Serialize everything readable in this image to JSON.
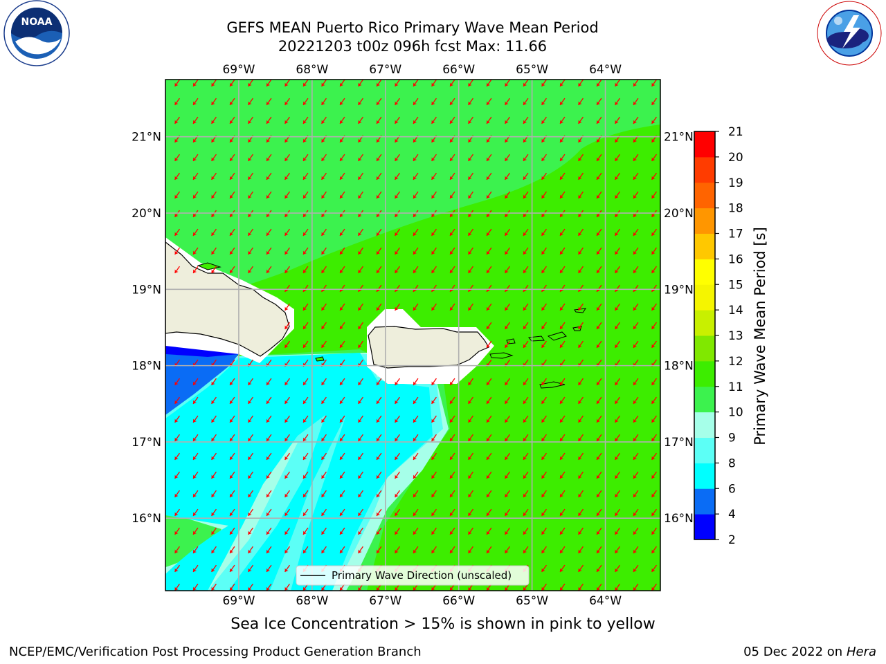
{
  "header": {
    "title_line1": "GEFS MEAN Puerto Rico Primary Wave Mean Period",
    "title_line2": "20221203 t00z 096h fcst   Max: 11.66"
  },
  "logos": {
    "noaa": {
      "text": "NOAA",
      "ring_text": "NATIONAL OCEANIC AND ATMOSPHERIC ADMINISTRATION · U.S. DEPARTMENT OF COMMERCE",
      "icon": "noaa-logo-icon"
    },
    "nws": {
      "ring_text": "NATIONAL WEATHER SERVICE",
      "icon": "nws-logo-icon"
    }
  },
  "map": {
    "lon_ticks": [
      "69°W",
      "68°W",
      "67°W",
      "66°W",
      "65°W",
      "64°W"
    ],
    "lat_ticks": [
      "21°N",
      "20°N",
      "19°N",
      "18°N",
      "17°N",
      "16°N"
    ],
    "lon_range": [
      -70.0,
      -63.25
    ],
    "lat_range": [
      15.05,
      21.75
    ],
    "land_color": "#eeeedc",
    "arrow_color": "#ff0000",
    "legend_label": "Primary Wave Direction (unscaled)",
    "regions": [
      {
        "name": "Hispaniola (east)"
      },
      {
        "name": "Puerto Rico"
      },
      {
        "name": "Virgin Islands"
      }
    ]
  },
  "colorbar": {
    "label": "Primary Wave Mean Period [s]",
    "ticks": [
      "2",
      "4",
      "6",
      "8",
      "9",
      "10",
      "11",
      "12",
      "13",
      "14",
      "15",
      "16",
      "17",
      "18",
      "19",
      "20",
      "21"
    ],
    "colors": [
      "#0000ff",
      "#0a6cf5",
      "#00ffff",
      "#5cfff6",
      "#a6ffe9",
      "#3cf24e",
      "#3ded00",
      "#80e800",
      "#c8f000",
      "#f5f500",
      "#ffff00",
      "#ffc800",
      "#ff9600",
      "#ff6400",
      "#ff3c00",
      "#ff0000"
    ]
  },
  "field_colors": {
    "period_11_12": "#3ded00",
    "period_10_11": "#3cf24e",
    "period_9_10": "#a6ffe9",
    "period_8_9": "#5cfff6",
    "period_6_8": "#00ffff",
    "period_4_6": "#0a6cf5",
    "period_2_4": "#0000ff"
  },
  "captions": {
    "ice_note": "Sea Ice Concentration > 15% is shown in pink to yellow",
    "footer_left": "NCEP/EMC/Verification Post Processing Product Generation Branch",
    "footer_date": "05 Dec 2022 on",
    "footer_host": "Hera"
  }
}
